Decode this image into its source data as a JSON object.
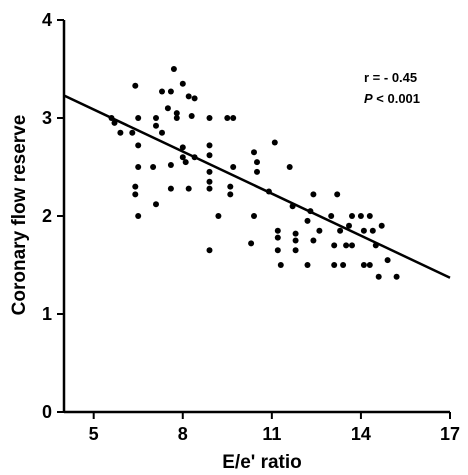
{
  "chart_data": {
    "type": "scatter",
    "xlabel": "E/e' ratio",
    "ylabel": "Coronary flow reserve",
    "xlim": [
      4,
      17
    ],
    "ylim": [
      0,
      4
    ],
    "xticks": [
      5,
      8,
      11,
      14,
      17
    ],
    "yticks": [
      0,
      1,
      2,
      3,
      4
    ],
    "x_tick_labels": [
      "5",
      "8",
      "11",
      "14",
      "17"
    ],
    "y_tick_labels": [
      "0",
      "1",
      "2",
      "3",
      "4"
    ],
    "grid": false,
    "annotations": {
      "r_text": "r = - 0.45",
      "p_symbol": "P",
      "p_text": " < 0.001"
    },
    "regression": {
      "x": [
        4,
        17
      ],
      "y": [
        3.23,
        1.37
      ]
    },
    "points": [
      {
        "x": 5.6,
        "y": 3.0
      },
      {
        "x": 5.7,
        "y": 2.95
      },
      {
        "x": 5.9,
        "y": 2.85
      },
      {
        "x": 6.3,
        "y": 2.85
      },
      {
        "x": 6.4,
        "y": 3.33
      },
      {
        "x": 6.5,
        "y": 3.0
      },
      {
        "x": 6.4,
        "y": 2.3
      },
      {
        "x": 6.4,
        "y": 2.22
      },
      {
        "x": 6.5,
        "y": 2.5
      },
      {
        "x": 6.5,
        "y": 2.72
      },
      {
        "x": 6.5,
        "y": 2.0
      },
      {
        "x": 7.0,
        "y": 2.5
      },
      {
        "x": 7.1,
        "y": 3.0
      },
      {
        "x": 7.1,
        "y": 2.92
      },
      {
        "x": 7.1,
        "y": 2.12
      },
      {
        "x": 7.3,
        "y": 3.27
      },
      {
        "x": 7.3,
        "y": 2.85
      },
      {
        "x": 7.5,
        "y": 3.1
      },
      {
        "x": 7.6,
        "y": 3.27
      },
      {
        "x": 7.6,
        "y": 2.52
      },
      {
        "x": 7.6,
        "y": 2.28
      },
      {
        "x": 7.7,
        "y": 3.5
      },
      {
        "x": 7.8,
        "y": 3.05
      },
      {
        "x": 7.8,
        "y": 3.0
      },
      {
        "x": 8.0,
        "y": 3.35
      },
      {
        "x": 8.0,
        "y": 2.7
      },
      {
        "x": 8.0,
        "y": 2.6
      },
      {
        "x": 8.1,
        "y": 2.55
      },
      {
        "x": 8.2,
        "y": 3.22
      },
      {
        "x": 8.2,
        "y": 2.28
      },
      {
        "x": 8.3,
        "y": 3.02
      },
      {
        "x": 8.4,
        "y": 3.2
      },
      {
        "x": 8.4,
        "y": 2.6
      },
      {
        "x": 8.9,
        "y": 3.0
      },
      {
        "x": 8.9,
        "y": 2.72
      },
      {
        "x": 8.9,
        "y": 2.62
      },
      {
        "x": 8.9,
        "y": 2.45
      },
      {
        "x": 8.9,
        "y": 2.35
      },
      {
        "x": 8.9,
        "y": 2.28
      },
      {
        "x": 8.9,
        "y": 1.65
      },
      {
        "x": 9.2,
        "y": 2.0
      },
      {
        "x": 9.5,
        "y": 3.0
      },
      {
        "x": 9.6,
        "y": 2.3
      },
      {
        "x": 9.6,
        "y": 2.22
      },
      {
        "x": 9.7,
        "y": 3.0
      },
      {
        "x": 9.7,
        "y": 2.5
      },
      {
        "x": 10.4,
        "y": 2.65
      },
      {
        "x": 10.5,
        "y": 2.55
      },
      {
        "x": 10.5,
        "y": 2.45
      },
      {
        "x": 10.4,
        "y": 2.0
      },
      {
        "x": 10.3,
        "y": 1.72
      },
      {
        "x": 10.9,
        "y": 2.25
      },
      {
        "x": 11.1,
        "y": 2.75
      },
      {
        "x": 11.2,
        "y": 1.85
      },
      {
        "x": 11.2,
        "y": 1.78
      },
      {
        "x": 11.2,
        "y": 1.65
      },
      {
        "x": 11.3,
        "y": 1.5
      },
      {
        "x": 11.6,
        "y": 2.5
      },
      {
        "x": 11.7,
        "y": 2.1
      },
      {
        "x": 11.8,
        "y": 1.82
      },
      {
        "x": 11.8,
        "y": 1.75
      },
      {
        "x": 11.8,
        "y": 1.65
      },
      {
        "x": 12.2,
        "y": 1.5
      },
      {
        "x": 12.2,
        "y": 1.95
      },
      {
        "x": 12.3,
        "y": 2.05
      },
      {
        "x": 12.4,
        "y": 2.22
      },
      {
        "x": 12.4,
        "y": 1.75
      },
      {
        "x": 12.6,
        "y": 1.85
      },
      {
        "x": 13.0,
        "y": 2.0
      },
      {
        "x": 13.1,
        "y": 1.7
      },
      {
        "x": 13.1,
        "y": 1.5
      },
      {
        "x": 13.2,
        "y": 2.22
      },
      {
        "x": 13.3,
        "y": 1.85
      },
      {
        "x": 13.4,
        "y": 1.5
      },
      {
        "x": 13.5,
        "y": 1.7
      },
      {
        "x": 13.6,
        "y": 1.9
      },
      {
        "x": 13.7,
        "y": 2.0
      },
      {
        "x": 13.7,
        "y": 1.7
      },
      {
        "x": 14.0,
        "y": 2.0
      },
      {
        "x": 14.1,
        "y": 1.85
      },
      {
        "x": 14.1,
        "y": 1.5
      },
      {
        "x": 14.3,
        "y": 2.0
      },
      {
        "x": 14.3,
        "y": 1.5
      },
      {
        "x": 14.4,
        "y": 1.85
      },
      {
        "x": 14.5,
        "y": 1.7
      },
      {
        "x": 14.6,
        "y": 1.38
      },
      {
        "x": 14.7,
        "y": 1.9
      },
      {
        "x": 14.9,
        "y": 1.55
      },
      {
        "x": 15.2,
        "y": 1.38
      }
    ],
    "colors": {
      "axis": "#000000",
      "points": "#000000",
      "line": "#000000"
    }
  }
}
